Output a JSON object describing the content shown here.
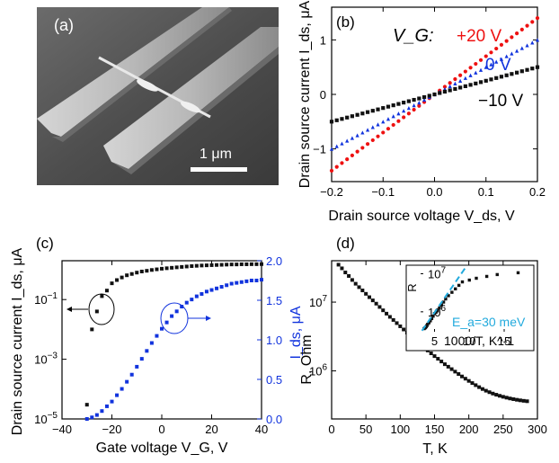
{
  "figure": {
    "panel_a": {
      "label": "(a)",
      "scalebar_label": "1 μm"
    }
  },
  "chart_data": [
    {
      "panel": "(b)",
      "type": "scatter",
      "xlabel": "Drain source voltage V_ds, V",
      "ylabel": "Drain source current I_ds, μA",
      "xlim": [
        -0.2,
        0.2
      ],
      "ylim": [
        -1.6,
        1.6
      ],
      "xticks": [
        "-0.2",
        "-0.1",
        "0.0",
        "0.1",
        "0.2"
      ],
      "yticks": [
        "-1",
        "0",
        "1"
      ],
      "gate_label": "V_G:",
      "series": [
        {
          "name": "+20 V",
          "label": "+20 V",
          "color": "#ee1111",
          "marker": "circle",
          "slope": 7.0
        },
        {
          "name": "0 V",
          "label": "0 V",
          "color": "#1133dd",
          "marker": "triangle",
          "slope": 5.0
        },
        {
          "name": "-10 V",
          "label": "−10 V",
          "color": "#111111",
          "marker": "square",
          "slope": 2.5
        }
      ]
    },
    {
      "panel": "(c)",
      "type": "scatter",
      "xlabel": "Gate voltage V_G, V",
      "ylabel_left": "Drain source current I_ds, μA",
      "ylabel_right": "I_ds, μA",
      "xlim": [
        -40,
        40
      ],
      "ylim_left_log": [
        1e-05,
        2
      ],
      "ylim_right": [
        0,
        2.0
      ],
      "xticks": [
        "-40",
        "-20",
        "0",
        "20",
        "40"
      ],
      "yticks_left": [
        "10^-5",
        "10^-3",
        "10^-1"
      ],
      "yticks_right": [
        "0.0",
        "0.5",
        "1.0",
        "1.5",
        "2.0"
      ],
      "series": [
        {
          "name": "I_ds log scale",
          "color": "#111111",
          "axis": "left-log",
          "x": [
            -30,
            -28,
            -26,
            -24,
            -22,
            -20,
            -18,
            -16,
            -14,
            -12,
            -10,
            -8,
            -6,
            -4,
            -2,
            0,
            2,
            4,
            6,
            8,
            10,
            12,
            14,
            16,
            18,
            20,
            22,
            24,
            26,
            28,
            30,
            32,
            34,
            36,
            38,
            40
          ],
          "y": [
            3e-05,
            0.01,
            0.04,
            0.13,
            0.2,
            0.35,
            0.45,
            0.55,
            0.65,
            0.72,
            0.8,
            0.87,
            0.92,
            0.98,
            1.03,
            1.08,
            1.12,
            1.16,
            1.2,
            1.24,
            1.28,
            1.32,
            1.35,
            1.38,
            1.4,
            1.42,
            1.44,
            1.46,
            1.48,
            1.5,
            1.5,
            1.52,
            1.52,
            1.53,
            1.53,
            1.54
          ]
        },
        {
          "name": "I_ds linear scale",
          "color": "#1133dd",
          "axis": "right-linear",
          "x": [
            -30,
            -28,
            -26,
            -24,
            -22,
            -20,
            -18,
            -16,
            -14,
            -12,
            -10,
            -8,
            -6,
            -4,
            -2,
            0,
            2,
            4,
            6,
            8,
            10,
            12,
            14,
            16,
            18,
            20,
            22,
            24,
            26,
            28,
            30,
            32,
            34,
            36,
            38,
            40
          ],
          "y": [
            0.0,
            0.02,
            0.05,
            0.1,
            0.16,
            0.22,
            0.3,
            0.38,
            0.47,
            0.56,
            0.66,
            0.76,
            0.86,
            0.96,
            1.05,
            1.14,
            1.22,
            1.3,
            1.36,
            1.42,
            1.47,
            1.51,
            1.55,
            1.58,
            1.61,
            1.63,
            1.65,
            1.67,
            1.69,
            1.71,
            1.72,
            1.73,
            1.74,
            1.75,
            1.75,
            1.76
          ]
        }
      ]
    },
    {
      "panel": "(d)",
      "type": "scatter",
      "xlabel": "T, K",
      "ylabel": "R, Ohm",
      "xlim": [
        0,
        300
      ],
      "ylim_log": [
        200000,
        40000000
      ],
      "xticks": [
        "0",
        "50",
        "100",
        "150",
        "200",
        "250",
        "300"
      ],
      "yticks": [
        "10^6",
        "10^7"
      ],
      "series": [
        {
          "name": "R(T)",
          "color": "#111111",
          "x": [
            10,
            15,
            20,
            25,
            30,
            35,
            40,
            45,
            50,
            55,
            60,
            65,
            70,
            75,
            80,
            85,
            90,
            95,
            100,
            105,
            110,
            115,
            120,
            125,
            130,
            135,
            140,
            145,
            150,
            155,
            160,
            165,
            170,
            175,
            180,
            185,
            190,
            195,
            200,
            205,
            210,
            215,
            220,
            225,
            230,
            235,
            240,
            245,
            250,
            255,
            260,
            265,
            270,
            275,
            280,
            285
          ],
          "y": [
            35000000,
            31000000,
            27000000,
            24000000,
            21000000,
            18500000,
            16500000,
            14800000,
            13200000,
            11800000,
            10600000,
            9500000,
            8500000,
            7600000,
            6800000,
            6100000,
            5500000,
            4950000,
            4450000,
            4000000,
            3600000,
            3250000,
            2950000,
            2650000,
            2400000,
            2180000,
            1980000,
            1800000,
            1640000,
            1500000,
            1370000,
            1250000,
            1150000,
            1060000,
            975000,
            900000,
            830000,
            770000,
            715000,
            665000,
            620000,
            580000,
            545000,
            515000,
            490000,
            468000,
            450000,
            434000,
            420000,
            408000,
            397000,
            388000,
            380000,
            373000,
            367000,
            362000
          ]
        }
      ],
      "inset": {
        "xlabel": "1000/T, K^-1",
        "ylabel": "R",
        "xlim": [
          3,
          19
        ],
        "ylim_log": [
          300000,
          15000000
        ],
        "xticks": [
          "5",
          "10",
          "15"
        ],
        "yticks": [
          "10^6",
          "10^7"
        ],
        "fit_label": "E_a=30 meV",
        "fit_color": "#22aadd",
        "fit_line": {
          "x": [
            3.2,
            9.5
          ],
          "y": [
            320000,
            15000000
          ]
        },
        "series": [
          {
            "name": "R vs 1000/T",
            "color": "#111111",
            "x": [
              3.5,
              3.6,
              3.7,
              3.8,
              3.9,
              4.0,
              4.2,
              4.4,
              4.6,
              4.8,
              5.0,
              5.2,
              5.4,
              5.7,
              6.0,
              6.3,
              6.6,
              7.0,
              7.5,
              8.0,
              8.5,
              9.0,
              10.0,
              11.0,
              12.5,
              14.0,
              17.0
            ],
            "y": [
              362000,
              373000,
              388000,
              408000,
              434000,
              468000,
              515000,
              580000,
              665000,
              770000,
              900000,
              975000,
              1060000,
              1250000,
              1500000,
              1800000,
              2180000,
              2650000,
              3250000,
              4000000,
              4950000,
              6100000,
              6800000,
              7600000,
              8500000,
              9500000,
              10600000
            ]
          }
        ]
      }
    }
  ]
}
